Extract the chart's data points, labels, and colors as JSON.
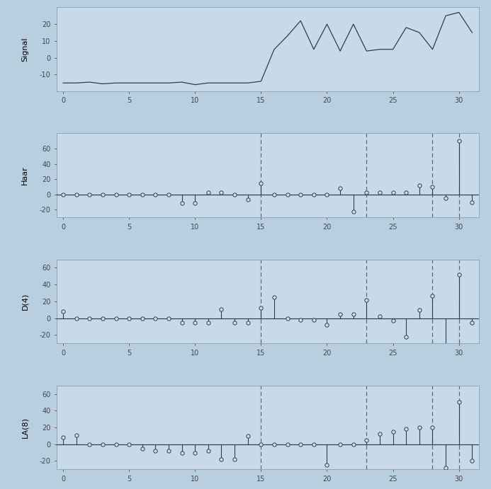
{
  "background_color": "#b8cfe0",
  "panel_bg": "#c8d9ea",
  "signal_x": [
    0,
    1,
    2,
    3,
    4,
    5,
    6,
    7,
    8,
    9,
    10,
    11,
    12,
    13,
    14,
    15,
    16,
    17,
    18,
    19,
    20,
    21,
    22,
    23,
    24,
    25,
    26,
    27,
    28,
    29,
    30,
    31
  ],
  "signal_y": [
    -15,
    -15,
    -14.5,
    -15.5,
    -15,
    -15,
    -15,
    -15,
    -15,
    -14.5,
    -16,
    -15,
    -15,
    -15,
    -15,
    -14,
    5,
    13,
    22,
    5,
    20,
    4,
    20,
    4,
    5,
    5,
    18,
    15,
    5,
    25,
    27,
    15
  ],
  "haar_y": [
    0,
    0,
    0,
    0,
    0,
    0,
    0,
    0,
    0,
    -11,
    -11,
    3,
    3,
    0,
    -7,
    15,
    0,
    0,
    0,
    0,
    0,
    8,
    -22,
    3,
    3,
    3,
    3,
    12,
    10,
    -5,
    70,
    -10
  ],
  "d4_y": [
    8,
    0,
    0,
    0,
    0,
    0,
    0,
    0,
    0,
    -5,
    -5,
    -5,
    11,
    -5,
    -5,
    12,
    25,
    0,
    -2,
    -2,
    -8,
    5,
    5,
    22,
    2,
    -3,
    -22,
    10,
    27,
    -35,
    52,
    -5
  ],
  "la8_y": [
    8,
    11,
    0,
    0,
    0,
    0,
    -5,
    -8,
    -8,
    -10,
    -10,
    -8,
    -18,
    -18,
    10,
    0,
    0,
    0,
    0,
    0,
    -25,
    0,
    0,
    5,
    12,
    15,
    18,
    20,
    20,
    -28,
    50,
    -20
  ],
  "dashed_lines": [
    15,
    23,
    28,
    30
  ],
  "xlim": [
    -0.5,
    31.5
  ],
  "ylim_signal": [
    -20,
    30
  ],
  "ylim_haar": [
    -30,
    80
  ],
  "ylim_d4": [
    -30,
    70
  ],
  "ylim_la8": [
    -30,
    70
  ],
  "yticks_signal": [
    -10,
    0,
    10,
    20
  ],
  "yticks_haar": [
    -20,
    0,
    20,
    40,
    60
  ],
  "yticks_d4": [
    -20,
    0,
    20,
    40,
    60
  ],
  "yticks_la8": [
    -20,
    0,
    20,
    40,
    60
  ],
  "xticks": [
    0,
    5,
    10,
    15,
    20,
    25,
    30
  ],
  "signal_label": "Signal",
  "haar_label": "Haar",
  "d4_label": "D(4)",
  "la8_label": "LA(8)",
  "line_color": "#2a3f55",
  "stem_color": "#2a3f55",
  "marker_facecolor": "#d0deeb",
  "marker_edgecolor": "#2a3f55",
  "dashed_color": "#556677",
  "baseline_color": "#2a3f55",
  "spine_color": "#8aaabb",
  "tick_color": "#444455"
}
